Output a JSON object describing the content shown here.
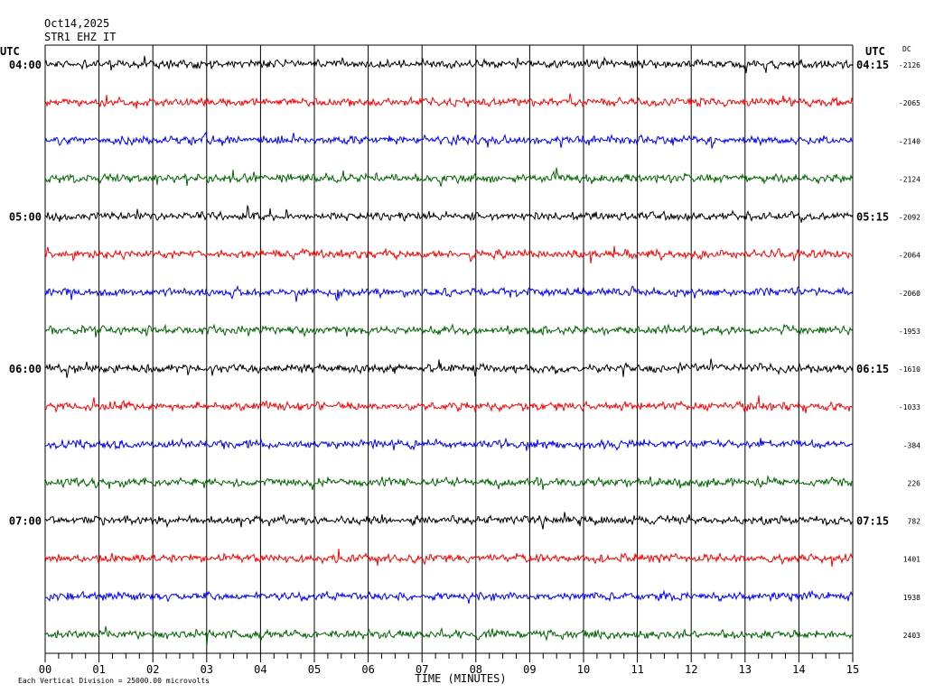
{
  "header": {
    "date": "Oct14,2025",
    "station": "STR1 EHZ IT"
  },
  "chart_data": {
    "type": "line",
    "left_axis_label": "UTC",
    "right_axis_label": "UTC",
    "dc_label": "DC",
    "xlabel": "TIME (MINUTES)",
    "x_ticks": [
      "00",
      "01",
      "02",
      "03",
      "04",
      "05",
      "06",
      "07",
      "08",
      "09",
      "10",
      "11",
      "12",
      "13",
      "14",
      "15"
    ],
    "xlim": [
      0,
      15
    ],
    "scale_note": "Each Vertical Division = 25000.00 microvolts",
    "traces": [
      {
        "left_label": "04:00",
        "right_label": "04:15",
        "dc": "-2126",
        "color": "#000000"
      },
      {
        "left_label": "",
        "right_label": "",
        "dc": "-2065",
        "color": "#ff0000"
      },
      {
        "left_label": "",
        "right_label": "",
        "dc": "-2140",
        "color": "#0000ff"
      },
      {
        "left_label": "",
        "right_label": "",
        "dc": "-2124",
        "color": "#006400"
      },
      {
        "left_label": "05:00",
        "right_label": "05:15",
        "dc": "-2092",
        "color": "#000000"
      },
      {
        "left_label": "",
        "right_label": "",
        "dc": "-2064",
        "color": "#ff0000"
      },
      {
        "left_label": "",
        "right_label": "",
        "dc": "-2060",
        "color": "#0000ff"
      },
      {
        "left_label": "",
        "right_label": "",
        "dc": "-1953",
        "color": "#006400"
      },
      {
        "left_label": "06:00",
        "right_label": "06:15",
        "dc": "-1610",
        "color": "#000000"
      },
      {
        "left_label": "",
        "right_label": "",
        "dc": "-1033",
        "color": "#ff0000"
      },
      {
        "left_label": "",
        "right_label": "",
        "dc": "-384",
        "color": "#0000ff"
      },
      {
        "left_label": "",
        "right_label": "",
        "dc": "226",
        "color": "#006400"
      },
      {
        "left_label": "07:00",
        "right_label": "07:15",
        "dc": "782",
        "color": "#000000"
      },
      {
        "left_label": "",
        "right_label": "",
        "dc": "1401",
        "color": "#ff0000"
      },
      {
        "left_label": "",
        "right_label": "",
        "dc": "1938",
        "color": "#0000ff"
      },
      {
        "left_label": "",
        "right_label": "",
        "dc": "2403",
        "color": "#006400"
      }
    ]
  }
}
